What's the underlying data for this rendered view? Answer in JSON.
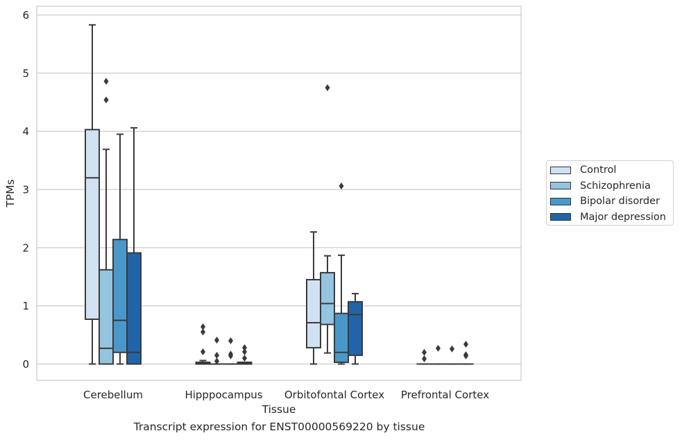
{
  "caption": "Transcript expression for ENST00000569220 by tissue",
  "chart_data": {
    "type": "box",
    "title": "",
    "xlabel": "Tissue",
    "ylabel": "TPMs",
    "ylim": [
      -0.28,
      6.15
    ],
    "yticks": [
      0,
      1,
      2,
      3,
      4,
      5,
      6
    ],
    "grid": true,
    "legend_position": "right",
    "categories": [
      "Cerebellum",
      "Hipppocampus",
      "Orbitofontal Cortex",
      "Prefrontal Cortex"
    ],
    "series": [
      {
        "name": "Control",
        "color": "#d0e1f2",
        "boxes": [
          {
            "whislo": 0.0,
            "q1": 0.77,
            "med": 3.2,
            "q3": 4.03,
            "whishi": 5.83,
            "fliers": []
          },
          {
            "whislo": 0.0,
            "q1": 0.0,
            "med": 0.01,
            "q3": 0.03,
            "whishi": 0.06,
            "fliers": [
              0.21,
              0.55,
              0.64
            ]
          },
          {
            "whislo": 0.0,
            "q1": 0.28,
            "med": 0.71,
            "q3": 1.45,
            "whishi": 2.27,
            "fliers": []
          },
          {
            "whislo": 0.0,
            "q1": 0.0,
            "med": 0.0,
            "q3": 0.0,
            "whishi": 0.0,
            "fliers": [
              0.09,
              0.2
            ]
          }
        ]
      },
      {
        "name": "Schizophrenia",
        "color": "#94c4df",
        "boxes": [
          {
            "whislo": 0.0,
            "q1": 0.0,
            "med": 0.27,
            "q3": 1.62,
            "whishi": 3.69,
            "fliers": [
              4.54,
              4.86
            ]
          },
          {
            "whislo": 0.0,
            "q1": 0.0,
            "med": 0.0,
            "q3": 0.0,
            "whishi": 0.0,
            "fliers": [
              0.05,
              0.15,
              0.41
            ]
          },
          {
            "whislo": 0.19,
            "q1": 0.68,
            "med": 1.04,
            "q3": 1.57,
            "whishi": 1.86,
            "fliers": [
              4.75
            ]
          },
          {
            "whislo": 0.0,
            "q1": 0.0,
            "med": 0.0,
            "q3": 0.0,
            "whishi": 0.0,
            "fliers": [
              0.27
            ]
          }
        ]
      },
      {
        "name": "Bipolar disorder",
        "color": "#4a98c9",
        "boxes": [
          {
            "whislo": 0.0,
            "q1": 0.2,
            "med": 0.75,
            "q3": 2.14,
            "whishi": 3.95,
            "fliers": []
          },
          {
            "whislo": 0.0,
            "q1": 0.0,
            "med": 0.0,
            "q3": 0.0,
            "whishi": 0.0,
            "fliers": [
              0.14,
              0.17,
              0.4
            ]
          },
          {
            "whislo": 0.0,
            "q1": 0.03,
            "med": 0.2,
            "q3": 0.87,
            "whishi": 1.87,
            "fliers": [
              3.06
            ]
          },
          {
            "whislo": 0.0,
            "q1": 0.0,
            "med": 0.0,
            "q3": 0.0,
            "whishi": 0.0,
            "fliers": [
              0.26
            ]
          }
        ]
      },
      {
        "name": "Major depression",
        "color": "#2264a9",
        "boxes": [
          {
            "whislo": 0.0,
            "q1": 0.0,
            "med": 0.2,
            "q3": 1.91,
            "whishi": 4.06,
            "fliers": []
          },
          {
            "whislo": 0.0,
            "q1": 0.0,
            "med": 0.01,
            "q3": 0.03,
            "whishi": 0.03,
            "fliers": [
              0.1,
              0.21,
              0.28
            ]
          },
          {
            "whislo": 0.0,
            "q1": 0.15,
            "med": 0.85,
            "q3": 1.07,
            "whishi": 1.21,
            "fliers": []
          },
          {
            "whislo": 0.0,
            "q1": 0.0,
            "med": 0.0,
            "q3": 0.0,
            "whishi": 0.0,
            "fliers": [
              0.14,
              0.16,
              0.34
            ]
          }
        ]
      }
    ]
  }
}
